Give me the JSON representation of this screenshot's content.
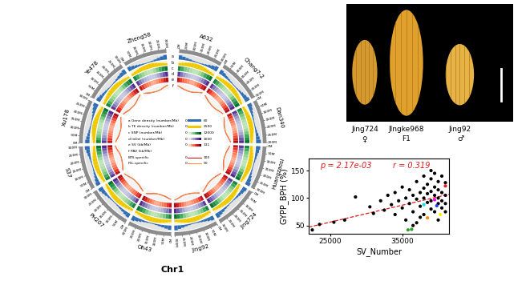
{
  "circos": {
    "title": "Chr1",
    "genomes": [
      "A632",
      "Chang7-2",
      "Dan340",
      "Huangzaosi",
      "Jing724",
      "Jing92",
      "Oh43",
      "PH207",
      "S37",
      "Xu178",
      "Ye478",
      "Zheng58"
    ],
    "lengths": [
      305,
      305,
      305,
      305,
      305,
      305,
      305,
      305,
      305,
      305,
      305,
      305
    ],
    "ticks": [
      {
        "value": 0,
        "label": "0M"
      },
      {
        "value": 50,
        "label": "50M"
      },
      {
        "value": 100,
        "label": "100M"
      },
      {
        "value": 150,
        "label": "150M"
      },
      {
        "value": 200,
        "label": "200M"
      },
      {
        "value": 250,
        "label": "250M"
      },
      {
        "value": 300,
        "label": "300M"
      }
    ],
    "tracks": [
      {
        "letter": "a",
        "name": "Gene density (number/Mb)",
        "type": "bar",
        "color": "#2f6eb5",
        "range": [
          0,
          60
        ],
        "values": [
          45,
          35,
          25,
          18,
          12,
          8,
          8,
          12,
          18,
          28,
          38,
          50
        ]
      },
      {
        "letter": "b",
        "name": "TE density (number/Mb)",
        "type": "bar",
        "color": "#f0c800",
        "range": [
          0,
          2500
        ],
        "values": [
          1200,
          1500,
          1800,
          2100,
          2300,
          2400,
          2400,
          2300,
          2000,
          1700,
          1400,
          1100
        ]
      },
      {
        "letter": "c",
        "name": "SNP (number/Mb)",
        "type": "heatmap",
        "color": "Greens",
        "range": [
          0,
          12000
        ],
        "values": [
          9000,
          7000,
          5000,
          4000,
          3000,
          2500,
          2500,
          3500,
          5000,
          7000,
          8500,
          10000
        ]
      },
      {
        "letter": "d",
        "name": "InDel (number/Mb)",
        "type": "heatmap",
        "color": "Purples",
        "range": [
          0,
          1000
        ],
        "values": [
          800,
          600,
          450,
          350,
          300,
          250,
          250,
          300,
          400,
          550,
          700,
          850
        ]
      },
      {
        "letter": "e",
        "name": "SV (kb/Mb)",
        "type": "heatmap",
        "color": "Reds",
        "range": [
          0,
          131
        ],
        "values": [
          100,
          80,
          60,
          50,
          40,
          30,
          30,
          40,
          55,
          70,
          90,
          110
        ]
      },
      {
        "letter": "f",
        "name": "PAV (kb/Mb)",
        "type": "line",
        "series": [
          {
            "name": "BTS-specific",
            "color": "#d7191c",
            "range": [
              0,
              100
            ],
            "values": [
              60,
              45,
              30,
              20,
              15,
              10,
              10,
              15,
              25,
              40,
              55,
              70
            ]
          },
          {
            "name": "F1L-specific",
            "color": "#fd9a40",
            "range": [
              0,
              50
            ],
            "values": [
              30,
              25,
              18,
              12,
              8,
              6,
              6,
              8,
              14,
              22,
              28,
              35
            ]
          }
        ]
      }
    ]
  },
  "photo": {
    "labels": [
      "Jing724",
      "JIngke968",
      "Jing92"
    ],
    "roles": [
      "♀",
      "F1",
      "♂"
    ]
  },
  "chart_data": {
    "type": "scatter",
    "x_label": "SV_Number",
    "y_label": "GYPP_BPH (%)",
    "xlim": [
      22000,
      41500
    ],
    "ylim": [
      35,
      172
    ],
    "xticks": [
      25000,
      35000
    ],
    "yticks": [
      50,
      100,
      150
    ],
    "annotations": [
      {
        "text": "p = 2.17e-03",
        "color": "#e31a1c"
      },
      {
        "text": "r = 0.319",
        "color": "#e31a1c"
      }
    ],
    "series": [
      {
        "type": "scatter",
        "color": "#000000",
        "x": [
          22500,
          23500,
          25500,
          27000,
          28500,
          30500,
          31000,
          32000,
          32500,
          33000,
          33500,
          34000,
          34000,
          34500,
          35000,
          35000,
          35500,
          35500,
          36000,
          36000,
          36500,
          36500,
          37000,
          37000,
          37000,
          37500,
          37500,
          38000,
          38000,
          38000,
          38000,
          38500,
          38500,
          38500,
          39000,
          39000,
          39000,
          39000,
          39000,
          39500,
          39500,
          39500,
          39500,
          40000,
          40000,
          40000,
          40000,
          40000,
          40500,
          40500,
          40500,
          40500,
          41000,
          41000,
          41000,
          41000,
          37500,
          36500
        ],
        "values": [
          42,
          52,
          56,
          60,
          102,
          84,
          72,
          95,
          78,
          105,
          88,
          110,
          70,
          95,
          120,
          82,
          100,
          60,
          115,
          90,
          105,
          75,
          130,
          98,
          55,
          110,
          85,
          140,
          118,
          100,
          70,
          125,
          108,
          92,
          150,
          135,
          112,
          95,
          80,
          145,
          120,
          105,
          75,
          130,
          115,
          100,
          90,
          60,
          140,
          110,
          95,
          82,
          128,
          105,
          90,
          75,
          65,
          50
        ]
      },
      {
        "type": "scatter",
        "colors": [
          "#ff00ff",
          "#e41a1c",
          "#00e5ee",
          "#1f3fff",
          "#ff8c00",
          "#ffee00",
          "#2ca02c",
          "#2ca02c"
        ],
        "x": [
          39500,
          41000,
          38000,
          39800,
          38500,
          40300,
          35800,
          36300
        ],
        "values": [
          97,
          122,
          88,
          86,
          64,
          70,
          42,
          43
        ]
      },
      {
        "type": "line",
        "color": "#e31a1c",
        "line_style": "dashed",
        "x": [
          22000,
          41500
        ],
        "values": [
          47,
          107
        ]
      }
    ]
  }
}
